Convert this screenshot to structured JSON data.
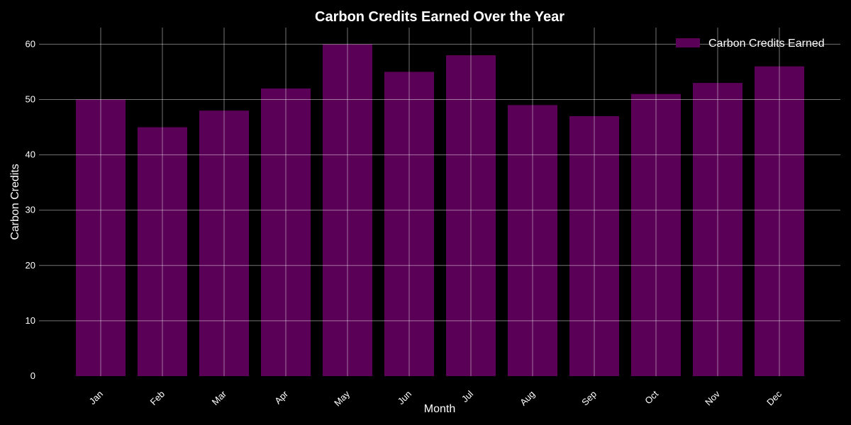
{
  "chart_data": {
    "type": "bar",
    "title": "Carbon Credits Earned Over the Year",
    "xlabel": "Month",
    "ylabel": "Carbon Credits",
    "categories": [
      "Jan",
      "Feb",
      "Mar",
      "Apr",
      "May",
      "Jun",
      "Jul",
      "Aug",
      "Sep",
      "Oct",
      "Nov",
      "Dec"
    ],
    "series": [
      {
        "name": "Carbon Credits Earned",
        "values": [
          50,
          45,
          48,
          52,
          60,
          55,
          58,
          49,
          47,
          51,
          53,
          56
        ]
      }
    ],
    "yticks": [
      "0",
      "10",
      "20",
      "30",
      "40",
      "50",
      "60"
    ],
    "ylim": [
      0,
      63
    ],
    "grid": true,
    "legend_position": "top-right",
    "colors": {
      "background": "#000000",
      "bar": "#5a0056",
      "text": "#ffffff",
      "grid": "#ffffff"
    }
  }
}
